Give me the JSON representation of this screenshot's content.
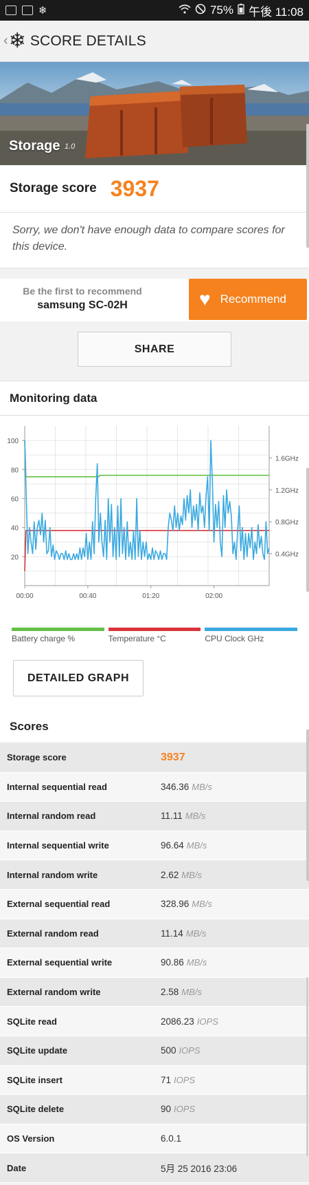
{
  "status_bar": {
    "battery": "75%",
    "time": "午後 11:08"
  },
  "app_bar": {
    "title": "SCORE DETAILS"
  },
  "hero": {
    "test_name": "Storage",
    "version": "1.0"
  },
  "score_card": {
    "label": "Storage score",
    "value": "3937",
    "compare_text": "Sorry, we don't have enough data to compare scores for this device."
  },
  "recommend": {
    "line1": "Be the first to recommend",
    "device": "samsung SC-02H",
    "button_label": "Recommend"
  },
  "share_label": "SHARE",
  "monitoring": {
    "title": "Monitoring data",
    "detailed_graph_label": "DETAILED GRAPH",
    "legend": [
      {
        "label": "Battery charge %",
        "color": "#64c148"
      },
      {
        "label": "Temperature °C",
        "color": "#d9343b"
      },
      {
        "label": "CPU Clock GHz",
        "color": "#3aa9e0"
      }
    ]
  },
  "chart_data": {
    "type": "line",
    "x_ticks": [
      "00:00",
      "00:40",
      "01:20",
      "02:00"
    ],
    "y_left_ticks": [
      "20",
      "40",
      "60",
      "80",
      "100"
    ],
    "y_right_ticks": [
      "0.4GHz",
      "0.8GHz",
      "1.2GHz",
      "1.6GHz"
    ],
    "y_left_range": [
      0,
      110
    ],
    "x_range_minutes": [
      0,
      155
    ],
    "series": [
      {
        "name": "Battery charge %",
        "color": "#64c148",
        "points": [
          [
            0,
            100
          ],
          [
            0.8,
            75
          ],
          [
            47,
            75
          ],
          [
            47.5,
            76
          ],
          [
            155,
            76
          ]
        ]
      },
      {
        "name": "Temperature °C",
        "color": "#d9343b",
        "points": [
          [
            0,
            10
          ],
          [
            0.8,
            38
          ],
          [
            155,
            38
          ]
        ]
      },
      {
        "name": "CPU Clock GHz",
        "color": "#3aa9e0",
        "points": [
          [
            0,
            100
          ],
          [
            1,
            60
          ],
          [
            2,
            22
          ],
          [
            3,
            40
          ],
          [
            4,
            30
          ],
          [
            5,
            22
          ],
          [
            6,
            44
          ],
          [
            7,
            25
          ],
          [
            8,
            40
          ],
          [
            9,
            45
          ],
          [
            10,
            35
          ],
          [
            11,
            50
          ],
          [
            12,
            30
          ],
          [
            13,
            45
          ],
          [
            14,
            22
          ],
          [
            15,
            24
          ],
          [
            16,
            40
          ],
          [
            17,
            20
          ],
          [
            18,
            28
          ],
          [
            19,
            18
          ],
          [
            20,
            24
          ],
          [
            21,
            22
          ],
          [
            22,
            18
          ],
          [
            23,
            22
          ],
          [
            24,
            22
          ],
          [
            25,
            18
          ],
          [
            26,
            24
          ],
          [
            27,
            18
          ],
          [
            28,
            22
          ],
          [
            29,
            18
          ],
          [
            30,
            18
          ],
          [
            31,
            22
          ],
          [
            32,
            18
          ],
          [
            33,
            22
          ],
          [
            34,
            18
          ],
          [
            35,
            26
          ],
          [
            36,
            18
          ],
          [
            37,
            26
          ],
          [
            38,
            20
          ],
          [
            39,
            36
          ],
          [
            40,
            18
          ],
          [
            41,
            30
          ],
          [
            42,
            18
          ],
          [
            43,
            44
          ],
          [
            44,
            22
          ],
          [
            45,
            60
          ],
          [
            46,
            84
          ],
          [
            47,
            30
          ],
          [
            48,
            50
          ],
          [
            49,
            30
          ],
          [
            50,
            20
          ],
          [
            51,
            45
          ],
          [
            52,
            18
          ],
          [
            53,
            60
          ],
          [
            54,
            30
          ],
          [
            55,
            56
          ],
          [
            56,
            20
          ],
          [
            57,
            40
          ],
          [
            58,
            18
          ],
          [
            59,
            55
          ],
          [
            60,
            20
          ],
          [
            61,
            60
          ],
          [
            62,
            22
          ],
          [
            63,
            40
          ],
          [
            64,
            18
          ],
          [
            65,
            44
          ],
          [
            66,
            20
          ],
          [
            67,
            30
          ],
          [
            68,
            18
          ],
          [
            69,
            38
          ],
          [
            70,
            18
          ],
          [
            71,
            60
          ],
          [
            72,
            20
          ],
          [
            73,
            38
          ],
          [
            74,
            18
          ],
          [
            75,
            30
          ],
          [
            76,
            20
          ],
          [
            77,
            30
          ],
          [
            78,
            18
          ],
          [
            79,
            22
          ],
          [
            80,
            18
          ],
          [
            81,
            26
          ],
          [
            82,
            18
          ],
          [
            83,
            24
          ],
          [
            84,
            22
          ],
          [
            85,
            18
          ],
          [
            86,
            24
          ],
          [
            87,
            18
          ],
          [
            88,
            22
          ],
          [
            89,
            22
          ],
          [
            90,
            18
          ],
          [
            91,
            40
          ],
          [
            92,
            50
          ],
          [
            93,
            45
          ],
          [
            94,
            38
          ],
          [
            95,
            55
          ],
          [
            96,
            40
          ],
          [
            97,
            50
          ],
          [
            98,
            38
          ],
          [
            99,
            48
          ],
          [
            100,
            42
          ],
          [
            101,
            60
          ],
          [
            102,
            45
          ],
          [
            103,
            62
          ],
          [
            104,
            50
          ],
          [
            105,
            66
          ],
          [
            106,
            40
          ],
          [
            107,
            55
          ],
          [
            108,
            45
          ],
          [
            109,
            56
          ],
          [
            110,
            38
          ],
          [
            111,
            64
          ],
          [
            112,
            50
          ],
          [
            113,
            55
          ],
          [
            114,
            40
          ],
          [
            115,
            62
          ],
          [
            116,
            75
          ],
          [
            117,
            38
          ],
          [
            118,
            100
          ],
          [
            119,
            72
          ],
          [
            120,
            30
          ],
          [
            121,
            56
          ],
          [
            122,
            40
          ],
          [
            123,
            58
          ],
          [
            124,
            30
          ],
          [
            125,
            20
          ],
          [
            126,
            62
          ],
          [
            127,
            40
          ],
          [
            128,
            66
          ],
          [
            129,
            50
          ],
          [
            130,
            58
          ],
          [
            131,
            48
          ],
          [
            132,
            22
          ],
          [
            133,
            30
          ],
          [
            134,
            18
          ],
          [
            135,
            38
          ],
          [
            136,
            55
          ],
          [
            137,
            24
          ],
          [
            138,
            40
          ],
          [
            139,
            18
          ],
          [
            140,
            36
          ],
          [
            141,
            20
          ],
          [
            142,
            36
          ],
          [
            143,
            26
          ],
          [
            144,
            40
          ],
          [
            145,
            18
          ],
          [
            146,
            30
          ],
          [
            147,
            22
          ],
          [
            148,
            42
          ],
          [
            149,
            26
          ],
          [
            150,
            34
          ],
          [
            151,
            22
          ],
          [
            152,
            18
          ],
          [
            153,
            44
          ],
          [
            154,
            22
          ],
          [
            155,
            26
          ]
        ]
      }
    ]
  },
  "scores": {
    "title": "Scores",
    "rows": [
      {
        "name": "Storage score",
        "value": "3937",
        "unit": ""
      },
      {
        "name": "Internal sequential read",
        "value": "346.36",
        "unit": "MB/s"
      },
      {
        "name": "Internal random read",
        "value": "11.11",
        "unit": "MB/s"
      },
      {
        "name": "Internal sequential write",
        "value": "96.64",
        "unit": "MB/s"
      },
      {
        "name": "Internal random write",
        "value": "2.62",
        "unit": "MB/s"
      },
      {
        "name": "External sequential read",
        "value": "328.96",
        "unit": "MB/s"
      },
      {
        "name": "External random read",
        "value": "11.14",
        "unit": "MB/s"
      },
      {
        "name": "External sequential write",
        "value": "90.86",
        "unit": "MB/s"
      },
      {
        "name": "External random write",
        "value": "2.58",
        "unit": "MB/s"
      },
      {
        "name": "SQLite read",
        "value": "2086.23",
        "unit": "IOPS"
      },
      {
        "name": "SQLite update",
        "value": "500",
        "unit": "IOPS"
      },
      {
        "name": "SQLite insert",
        "value": "71",
        "unit": "IOPS"
      },
      {
        "name": "SQLite delete",
        "value": "90",
        "unit": "IOPS"
      },
      {
        "name": "OS Version",
        "value": "6.0.1",
        "unit": ""
      },
      {
        "name": "Date",
        "value": "5月 25 2016 23:06",
        "unit": ""
      }
    ]
  }
}
